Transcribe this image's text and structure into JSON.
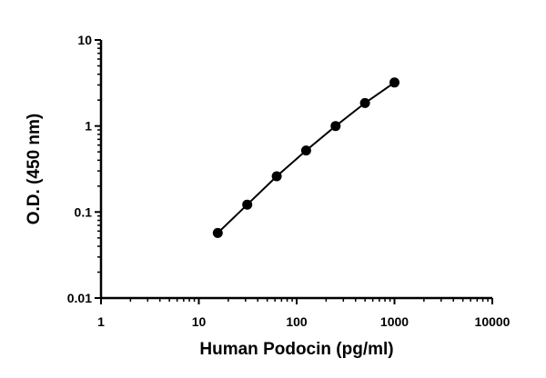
{
  "chart_data": {
    "type": "scatter",
    "title": "",
    "xlabel": "Human Podocin (pg/ml)",
    "ylabel": "O.D. (450 nm)",
    "xscale": "log",
    "yscale": "log",
    "xlim": [
      1,
      10000
    ],
    "ylim": [
      0.01,
      10
    ],
    "x_ticks": [
      "1",
      "10",
      "100",
      "1000",
      "10000"
    ],
    "y_ticks": [
      "0.01",
      "0.1",
      "1",
      "10"
    ],
    "grid": false,
    "legend": "none",
    "series": [
      {
        "x": [
          15.6,
          31.25,
          62.5,
          125,
          250,
          500,
          1000
        ],
        "y": [
          0.057,
          0.122,
          0.26,
          0.52,
          1.0,
          1.85,
          3.2
        ],
        "color": "#000000",
        "marker": "circle",
        "line": "fit"
      }
    ]
  }
}
